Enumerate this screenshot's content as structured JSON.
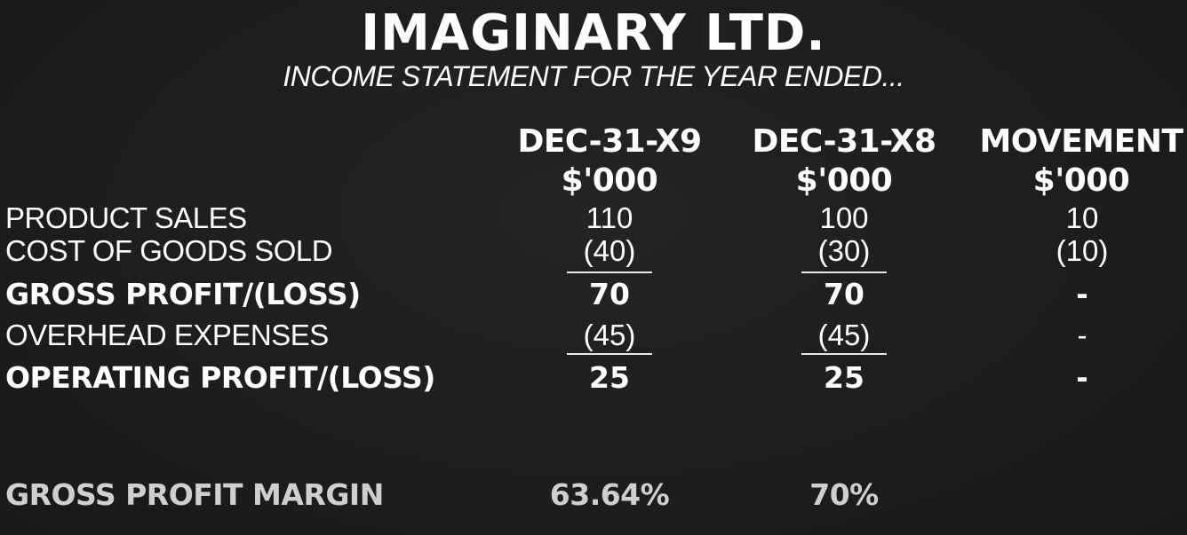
{
  "header": {
    "company": "IMAGINARY LTD.",
    "statement": "INCOME STATEMENT FOR THE YEAR ENDED..."
  },
  "columns": [
    {
      "period": "DEC-31-X9",
      "unit": "$'000"
    },
    {
      "period": "DEC-31-X8",
      "unit": "$'000"
    },
    {
      "period": "MOVEMENT",
      "unit": "$'000"
    }
  ],
  "rows": [
    {
      "label": "PRODUCT SALES",
      "values": [
        "110",
        "100",
        "10"
      ],
      "bold": false
    },
    {
      "label": "COST OF GOODS SOLD",
      "values": [
        "(40)",
        "(30)",
        "(10)"
      ],
      "bold": false
    },
    {
      "label": "GROSS PROFIT/(LOSS)",
      "values": [
        "70",
        "70",
        "-"
      ],
      "bold": true
    },
    {
      "label": "OVERHEAD EXPENSES",
      "values": [
        "(45)",
        "(45)",
        "-"
      ],
      "bold": false
    },
    {
      "label": "OPERATING PROFIT/(LOSS)",
      "values": [
        "25",
        "25",
        "-"
      ],
      "bold": true
    }
  ],
  "margin": {
    "label": "GROSS PROFIT MARGIN",
    "values": [
      "63.64%",
      "70%"
    ]
  },
  "colors": {
    "background": "#1d1d1d",
    "text": "#ffffff",
    "muted_text": "#cfcfcf"
  }
}
